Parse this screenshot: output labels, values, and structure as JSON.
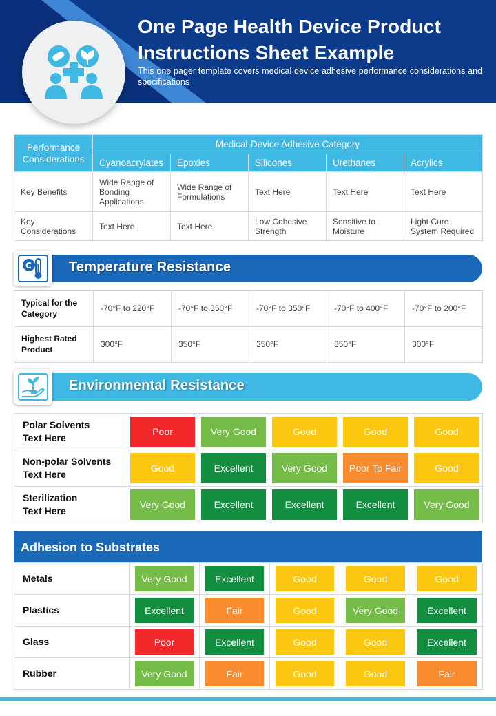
{
  "header": {
    "title_line1": "One Page Health Device Product",
    "title_line2": "Instructions Sheet Example",
    "subtitle": "This one pager template covers medical device adhesive performance considerations and specifications",
    "icon": "health-people-icon"
  },
  "colors": {
    "navy": "#0d3b8c",
    "blue": "#1a68b8",
    "cyan": "#3fb9e3",
    "poor": "#f0282a",
    "very_good": "#75bb48",
    "good": "#fcc710",
    "excellent": "#138d40",
    "fair": "#f98c2e"
  },
  "adhesive_table": {
    "perf_header": "Performance Considerations",
    "category_header": "Medical-Device Adhesive Category",
    "categories": [
      "Cyanoacrylates",
      "Epoxies",
      "Silicones",
      "Urethanes",
      "Acrylics"
    ],
    "rows": [
      {
        "label": "Key Benefits",
        "values": [
          "Wide Range of Bonding Applications",
          "Wide Range of Formulations",
          "Text Here",
          "Text Here",
          "Text Here"
        ]
      },
      {
        "label": "Key Considerations",
        "values": [
          "Text Here",
          "Text Here",
          "Low Cohesive Strength",
          "Sensitive to Moisture",
          "Light Cure System Required"
        ]
      }
    ]
  },
  "temperature": {
    "title": "Temperature Resistance",
    "icon": "thermometer-icon",
    "rows": [
      {
        "label": "Typical for the Category",
        "values": [
          "-70°F to 220°F",
          "-70°F to 350°F",
          "-70°F to 350°F",
          "-70°F to 400°F",
          "-70°F to 200°F"
        ]
      },
      {
        "label": "Highest Rated Product",
        "values": [
          "300°F",
          "350°F",
          "350°F",
          "350°F",
          "300°F"
        ]
      }
    ]
  },
  "environmental": {
    "title": "Environmental Resistance",
    "icon": "hand-plant-icon",
    "rows": [
      {
        "label1": "Polar Solvents",
        "label2": "Text Here",
        "values": [
          "Poor",
          "Very Good",
          "Good",
          "Good",
          "Good"
        ]
      },
      {
        "label1": "Non-polar Solvents",
        "label2": "Text Here",
        "values": [
          "Good",
          "Excellent",
          "Very Good",
          "Poor To Fair",
          "Good"
        ]
      },
      {
        "label1": "Sterilization",
        "label2": "Text Here",
        "values": [
          "Very Good",
          "Excellent",
          "Excellent",
          "Excellent",
          "Very Good"
        ]
      }
    ]
  },
  "adhesion": {
    "title": "Adhesion to Substrates",
    "rows": [
      {
        "label": "Metals",
        "values": [
          "Very Good",
          "Excellent",
          "Good",
          "Good",
          "Good"
        ]
      },
      {
        "label": "Plastics",
        "values": [
          "Excellent",
          "Fair",
          "Good",
          "Very Good",
          "Excellent"
        ]
      },
      {
        "label": "Glass",
        "values": [
          "Poor",
          "Excellent",
          "Good",
          "Good",
          "Excellent"
        ]
      },
      {
        "label": "Rubber",
        "values": [
          "Very Good",
          "Fair",
          "Good",
          "Good",
          "Fair"
        ]
      }
    ]
  }
}
